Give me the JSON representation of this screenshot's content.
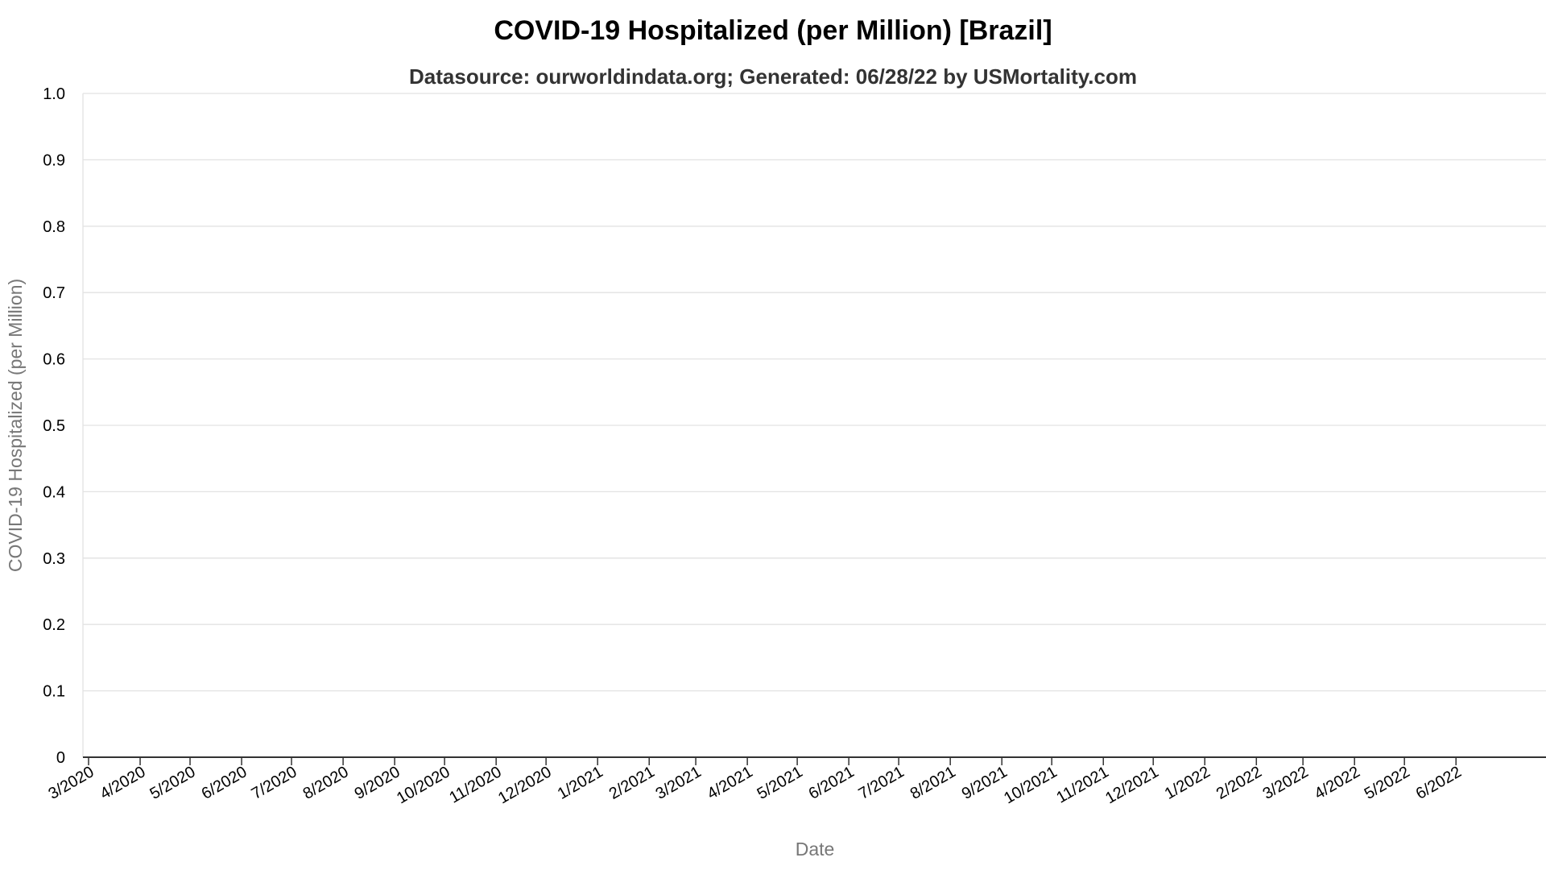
{
  "chart_data": {
    "type": "line",
    "title": "COVID-19 Hospitalized (per Million) [Brazil]",
    "subtitle": "Datasource: ourworldindata.org; Generated: 06/28/22 by USMortality.com",
    "xlabel": "Date",
    "ylabel": "COVID-19 Hospitalized (per Million)",
    "ylim": [
      0,
      1
    ],
    "y_ticks": [
      "0",
      "0.1",
      "0.2",
      "0.3",
      "0.4",
      "0.5",
      "0.6",
      "0.7",
      "0.8",
      "0.9",
      "1.0"
    ],
    "x_ticks": [
      "3/2020",
      "4/2020",
      "5/2020",
      "6/2020",
      "7/2020",
      "8/2020",
      "9/2020",
      "10/2020",
      "11/2020",
      "12/2020",
      "1/2021",
      "2/2021",
      "3/2021",
      "4/2021",
      "5/2021",
      "6/2021",
      "7/2021",
      "8/2021",
      "9/2021",
      "10/2021",
      "11/2021",
      "12/2021",
      "1/2022",
      "2/2022",
      "3/2022",
      "4/2022",
      "5/2022",
      "6/2022"
    ],
    "xlim": [
      "2020-03-01",
      "2022-06-28"
    ],
    "grid": true,
    "series": []
  },
  "colors": {
    "grid": "#e2e2e2",
    "axis": "#333333",
    "title": "#000000",
    "subtitle": "#333333",
    "axis_title": "#777777"
  }
}
